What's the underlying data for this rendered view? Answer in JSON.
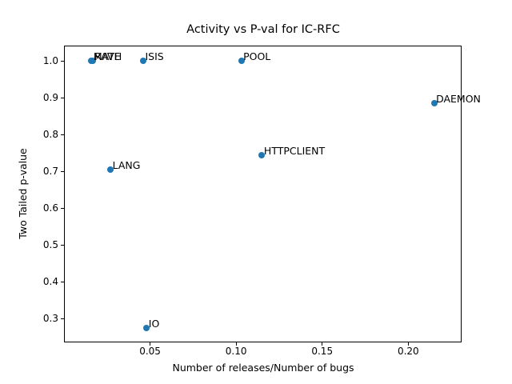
{
  "chart_data": {
    "type": "scatter",
    "title": "Activity vs P-val for IC-RFC",
    "xlabel": "Number of releases/Number of bugs",
    "ylabel": "Two Tailed p-value",
    "xlim": [
      0.0,
      0.231
    ],
    "ylim": [
      0.235,
      1.042
    ],
    "x_ticks": [
      0.05,
      0.1,
      0.15,
      0.2
    ],
    "x_tick_labels": [
      "0.05",
      "0.10",
      "0.15",
      "0.20"
    ],
    "y_ticks": [
      0.3,
      0.4,
      0.5,
      0.6,
      0.7,
      0.8,
      0.9,
      1.0
    ],
    "y_tick_labels": [
      "0.3",
      "0.4",
      "0.5",
      "0.6",
      "0.7",
      "0.8",
      "0.9",
      "1.0"
    ],
    "marker_color": "#1f77b4",
    "grid": false,
    "legend": null,
    "points": [
      {
        "label": "RAVE",
        "x": 0.0165,
        "y": 1.0
      },
      {
        "label": "MATH",
        "x": 0.016,
        "y": 1.0
      },
      {
        "label": "ISIS",
        "x": 0.046,
        "y": 1.0
      },
      {
        "label": "POOL",
        "x": 0.103,
        "y": 1.0
      },
      {
        "label": "DAEMON",
        "x": 0.215,
        "y": 0.885
      },
      {
        "label": "HTTPCLIENT",
        "x": 0.115,
        "y": 0.745
      },
      {
        "label": "LANG",
        "x": 0.027,
        "y": 0.705
      },
      {
        "label": "IO",
        "x": 0.048,
        "y": 0.275
      }
    ]
  }
}
